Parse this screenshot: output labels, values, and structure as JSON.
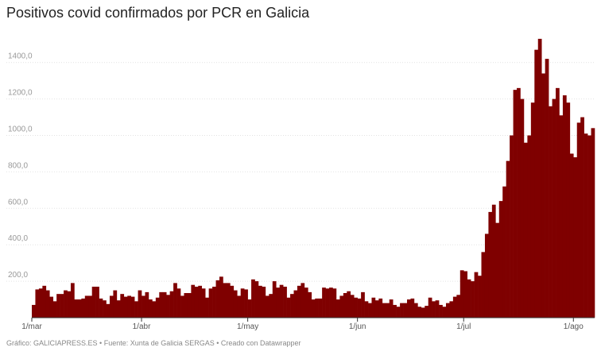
{
  "chart_data": {
    "type": "bar",
    "title": "Positivos covid confirmados por PCR en Galicia",
    "source": "Gráfico: GALICIAPRESS.ES • Fuente: Xunta de Galicia SERGAS • Creado con Datawrapper",
    "color": "#7f0000",
    "grid": true,
    "ylim": [
      0,
      1560
    ],
    "yticks": [
      {
        "value": 200,
        "label": "200,0"
      },
      {
        "value": 400,
        "label": "400,0"
      },
      {
        "value": 600,
        "label": "600,0"
      },
      {
        "value": 800,
        "label": "800,0"
      },
      {
        "value": 1000,
        "label": "1000,0"
      },
      {
        "value": 1200,
        "label": "1200,0"
      },
      {
        "value": 1400,
        "label": "1400,0"
      }
    ],
    "categories": [
      "1/mar",
      null,
      null,
      null,
      null,
      null,
      null,
      null,
      null,
      null,
      null,
      null,
      null,
      null,
      null,
      null,
      null,
      null,
      null,
      null,
      null,
      null,
      null,
      null,
      null,
      null,
      null,
      null,
      null,
      null,
      null,
      "1/abr",
      null,
      null,
      null,
      null,
      null,
      null,
      null,
      null,
      null,
      null,
      null,
      null,
      null,
      null,
      null,
      null,
      null,
      null,
      null,
      null,
      null,
      null,
      null,
      null,
      null,
      null,
      null,
      null,
      null,
      "1/may",
      null,
      null,
      null,
      null,
      null,
      null,
      null,
      null,
      null,
      null,
      null,
      null,
      null,
      null,
      null,
      null,
      null,
      null,
      null,
      null,
      null,
      null,
      null,
      null,
      null,
      null,
      null,
      null,
      null,
      null,
      "1/jun",
      null,
      null,
      null,
      null,
      null,
      null,
      null,
      null,
      null,
      null,
      null,
      null,
      null,
      null,
      null,
      null,
      null,
      null,
      null,
      null,
      null,
      null,
      null,
      null,
      null,
      null,
      null,
      null,
      null,
      "1/jul",
      null,
      null,
      null,
      null,
      null,
      null,
      null,
      null,
      null,
      null,
      null,
      null,
      null,
      null,
      null,
      null,
      null,
      null,
      null,
      null,
      null,
      null,
      null,
      null,
      null,
      null,
      null,
      null,
      null,
      null,
      "1/ago",
      null,
      null,
      null,
      null,
      null
    ],
    "values": [
      70,
      155,
      160,
      175,
      150,
      115,
      90,
      130,
      130,
      150,
      145,
      190,
      100,
      100,
      105,
      120,
      120,
      170,
      170,
      105,
      95,
      75,
      120,
      150,
      95,
      130,
      115,
      120,
      115,
      90,
      150,
      120,
      140,
      100,
      90,
      110,
      140,
      140,
      125,
      145,
      190,
      160,
      120,
      135,
      135,
      180,
      170,
      175,
      160,
      110,
      160,
      170,
      205,
      225,
      190,
      190,
      175,
      150,
      120,
      160,
      155,
      100,
      210,
      200,
      175,
      170,
      120,
      130,
      200,
      165,
      180,
      170,
      110,
      130,
      150,
      175,
      190,
      165,
      140,
      100,
      105,
      105,
      165,
      160,
      165,
      160,
      100,
      120,
      135,
      145,
      125,
      110,
      105,
      140,
      90,
      80,
      110,
      95,
      105,
      80,
      80,
      100,
      70,
      60,
      80,
      80,
      100,
      105,
      80,
      60,
      55,
      65,
      110,
      90,
      95,
      70,
      60,
      80,
      90,
      115,
      125,
      260,
      255,
      210,
      200,
      250,
      230,
      360,
      460,
      580,
      620,
      520,
      640,
      720,
      860,
      1000,
      1250,
      1260,
      1200,
      960,
      1000,
      1180,
      1470,
      1530,
      1340,
      1420,
      1160,
      1200,
      1260,
      1110,
      1220,
      1180,
      900,
      880,
      1070,
      1100,
      1010,
      1000,
      1040
    ]
  }
}
